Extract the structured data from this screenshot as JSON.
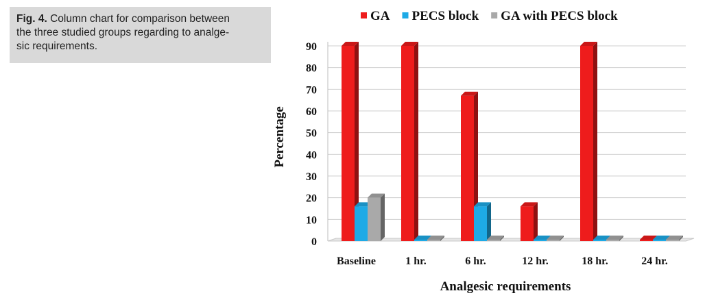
{
  "caption": {
    "label": "Fig. 4.",
    "line1": " Column chart for comparison between",
    "line2": "the three studied groups regarding to analge-",
    "line3": "sic requirements."
  },
  "chart_data": {
    "type": "bar",
    "categories": [
      "Baseline",
      "1 hr.",
      "6 hr.",
      "12 hr.",
      "18 hr.",
      "24 hr."
    ],
    "series": [
      {
        "name": "GA",
        "color": "#ee1c1c",
        "values": [
          90,
          90,
          67,
          16,
          90,
          0
        ]
      },
      {
        "name": "PECS block",
        "color": "#1eaae6",
        "values": [
          16,
          0,
          16,
          0,
          0,
          0
        ]
      },
      {
        "name": "GA with PECS block",
        "color": "#a9a9a9",
        "values": [
          20,
          0,
          0,
          0,
          0,
          0
        ]
      }
    ],
    "xlabel": "Analgesic requirements",
    "ylabel": "Percentage",
    "ylim": [
      0,
      90
    ],
    "yticks": [
      0,
      10,
      20,
      30,
      40,
      50,
      60,
      70,
      80,
      90
    ],
    "grid": true,
    "legend_position": "top"
  }
}
